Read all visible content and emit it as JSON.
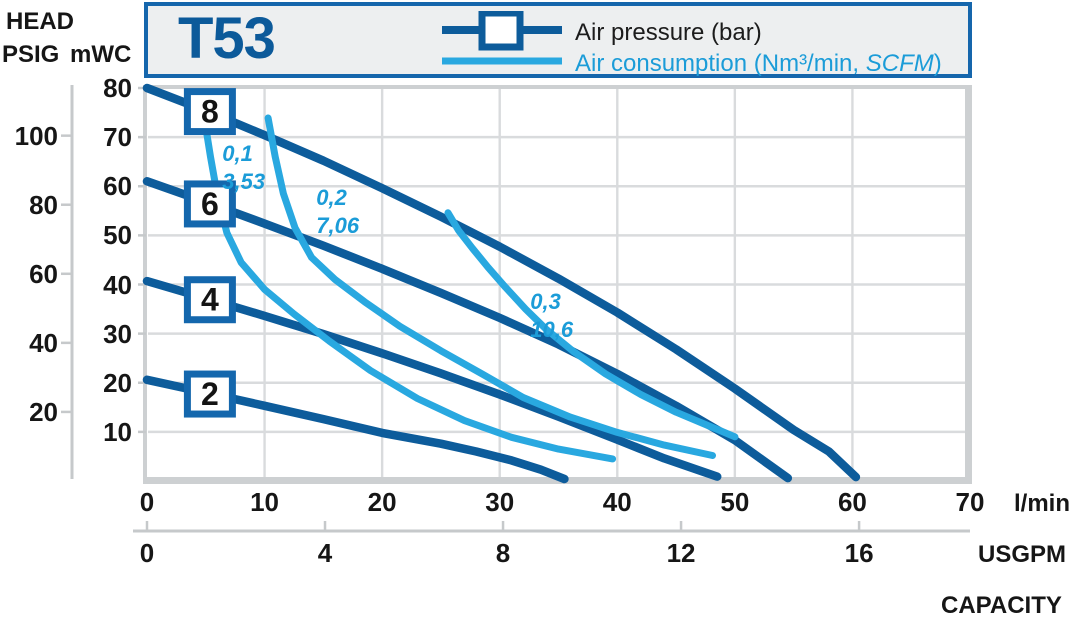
{
  "header": {
    "model": "T53",
    "legend": {
      "pressure_label": "Air pressure (bar)",
      "consumption_pre": "Air consumption (Nm³/min, ",
      "consumption_italic": "SCFM",
      "consumption_post": ")"
    }
  },
  "axes": {
    "head_label": "HEAD",
    "psig_label": "PSIG",
    "mwc_label": "mWC",
    "lmin_unit": "l/min",
    "usgpm_unit": "USGPM",
    "capacity_label": "CAPACITY"
  },
  "colors": {
    "pressure": "#0d5c9b",
    "consumption": "#29a8e0",
    "consumption_text": "#1b9cd8",
    "badge_border": "#1467ad",
    "header_border": "#1566ac",
    "header_fill": "#edeff0",
    "title": "#0c5a9a",
    "grid": "#d9dbdd",
    "border": "#cdd0d2",
    "axis": "#c6c9cb",
    "text": "#161616"
  },
  "chart_data": {
    "type": "line",
    "title": "T53 pump performance curves",
    "xlabel": "CAPACITY",
    "x_axis": {
      "unit": "l/min",
      "min": 0,
      "max": 70,
      "ticks": [
        0,
        10,
        20,
        30,
        40,
        50,
        60,
        70
      ]
    },
    "x_axis_secondary": {
      "unit": "USGPM",
      "ticks": [
        0,
        4,
        8,
        12,
        16
      ],
      "lmin_per_usgpm": 3.7854
    },
    "y_axis": {
      "unit": "mWC",
      "min": 0,
      "max": 80,
      "ticks": [
        10,
        20,
        30,
        40,
        50,
        60,
        70,
        80
      ]
    },
    "y_axis_secondary": {
      "unit": "PSIG",
      "ticks": [
        20,
        40,
        60,
        80,
        100
      ],
      "mwc_per_psig": 0.703
    },
    "grid": true,
    "legend_position": "top",
    "series": [
      {
        "id": "pressure-8bar",
        "kind": "pressure",
        "name": "Air pressure 8 bar",
        "badge": "8",
        "badge_at": [
          5.35,
          75.2
        ],
        "points": [
          [
            0,
            80
          ],
          [
            5,
            75.4
          ],
          [
            10,
            70.4
          ],
          [
            15,
            65.2
          ],
          [
            20,
            59.6
          ],
          [
            25,
            53.8
          ],
          [
            30,
            47.7
          ],
          [
            35,
            41.2
          ],
          [
            40,
            34.3
          ],
          [
            45,
            26.8
          ],
          [
            50,
            18.8
          ],
          [
            55,
            10.4
          ],
          [
            58,
            6
          ],
          [
            60.3,
            0.8
          ]
        ]
      },
      {
        "id": "pressure-6bar",
        "kind": "pressure",
        "name": "Air pressure 6 bar",
        "badge": "6",
        "badge_at": [
          5.35,
          56.4
        ],
        "points": [
          [
            0,
            61
          ],
          [
            5,
            56.8
          ],
          [
            10,
            52.4
          ],
          [
            15,
            47.9
          ],
          [
            20,
            43.2
          ],
          [
            25,
            38.3
          ],
          [
            30,
            33.2
          ],
          [
            35,
            27.8
          ],
          [
            40,
            21.8
          ],
          [
            45,
            15.3
          ],
          [
            50,
            8.3
          ],
          [
            54.5,
            0.6
          ]
        ]
      },
      {
        "id": "pressure-4bar",
        "kind": "pressure",
        "name": "Air pressure 4 bar",
        "badge": "4",
        "badge_at": [
          5.35,
          36.9
        ],
        "points": [
          [
            0,
            40.7
          ],
          [
            5,
            37.2
          ],
          [
            10,
            33.6
          ],
          [
            15,
            29.9
          ],
          [
            20,
            26
          ],
          [
            25,
            21.9
          ],
          [
            30,
            17.6
          ],
          [
            35,
            13.1
          ],
          [
            40,
            8.4
          ],
          [
            44,
            4.6
          ],
          [
            48.5,
            0.9
          ]
        ]
      },
      {
        "id": "pressure-2bar",
        "kind": "pressure",
        "name": "Air pressure 2 bar",
        "badge": "2",
        "badge_at": [
          5.35,
          17.7
        ],
        "points": [
          [
            0,
            20.6
          ],
          [
            5,
            18
          ],
          [
            10,
            15.3
          ],
          [
            15,
            12.6
          ],
          [
            20,
            9.8
          ],
          [
            25,
            7.6
          ],
          [
            28,
            6
          ],
          [
            31,
            4.2
          ],
          [
            33.5,
            2.3
          ],
          [
            35.5,
            0.4
          ]
        ]
      },
      {
        "id": "consumption-01",
        "kind": "consumption",
        "name": "Air consumption 0,1 Nm3/min (3,53 SCFM)",
        "label_lines": [
          "0,1",
          "3,53"
        ],
        "label_at": [
          6.4,
          69.4
        ],
        "points": [
          [
            4.9,
            73.5
          ],
          [
            5.4,
            66
          ],
          [
            6,
            58
          ],
          [
            6.8,
            50.5
          ],
          [
            8,
            44.5
          ],
          [
            10,
            39
          ],
          [
            12.5,
            34
          ],
          [
            15.5,
            28.5
          ],
          [
            19,
            22.5
          ],
          [
            23,
            16.8
          ],
          [
            27,
            12.3
          ],
          [
            31,
            8.9
          ],
          [
            35,
            6.5
          ],
          [
            39.6,
            4.5
          ]
        ]
      },
      {
        "id": "consumption-02",
        "kind": "consumption",
        "name": "Air consumption 0,2 Nm3/min (7,06 SCFM)",
        "label_lines": [
          "0,2",
          "7,06"
        ],
        "label_at": [
          14.4,
          60.5
        ],
        "points": [
          [
            10.3,
            73.9
          ],
          [
            10.9,
            66
          ],
          [
            11.6,
            58.5
          ],
          [
            12.6,
            51.5
          ],
          [
            14,
            45.5
          ],
          [
            16,
            41
          ],
          [
            18.5,
            36.5
          ],
          [
            21.5,
            31.5
          ],
          [
            25,
            26.5
          ],
          [
            28.5,
            21.8
          ],
          [
            32,
            17
          ],
          [
            36,
            13
          ],
          [
            40,
            9.9
          ],
          [
            44,
            7.3
          ],
          [
            48.1,
            5.2
          ]
        ]
      },
      {
        "id": "consumption-03",
        "kind": "consumption",
        "name": "Air consumption 0,3 Nm3/min (10,6 SCFM)",
        "label_lines": [
          "0,3",
          "10,6"
        ],
        "label_at": [
          32.6,
          39.3
        ],
        "points": [
          [
            25.6,
            54.6
          ],
          [
            26.5,
            51
          ],
          [
            27.7,
            47.3
          ],
          [
            29,
            43.5
          ],
          [
            30.5,
            39.4
          ],
          [
            32.2,
            35
          ],
          [
            34,
            30.8
          ],
          [
            36.3,
            26.3
          ],
          [
            39,
            21.8
          ],
          [
            42,
            17.6
          ],
          [
            45,
            14
          ],
          [
            47.5,
            11.5
          ],
          [
            50,
            9
          ]
        ]
      }
    ]
  }
}
